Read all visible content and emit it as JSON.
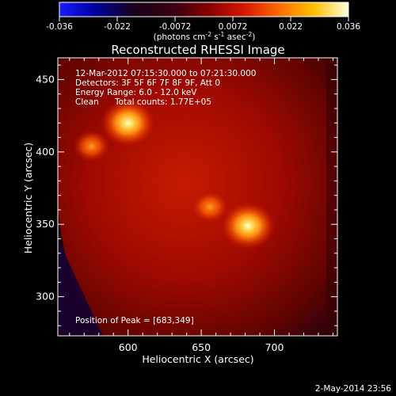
{
  "chart_data": {
    "type": "heatmap",
    "title": "Reconstructed RHESSI Image",
    "colorbar": {
      "ticks": [
        "-0.036",
        "-0.022",
        "-0.0072",
        "0.0072",
        "0.022",
        "0.036"
      ],
      "label_main": "(photons cm",
      "label_exp1": "-2",
      "label_mid": " s",
      "label_exp2": "-1",
      "label_end": " asec",
      "label_exp3": "-2",
      "label_close": ")",
      "colormap": "black-purple-red-orange-yellow-white",
      "range": [
        -0.036,
        0.036
      ]
    },
    "xlabel": "Heliocentric X (arcsec)",
    "ylabel": "Heliocentric Y (arcsec)",
    "xticks": [
      600,
      650,
      700
    ],
    "yticks": [
      300,
      350,
      400,
      450
    ],
    "xlim": [
      552,
      743
    ],
    "ylim": [
      273,
      465
    ],
    "annotations": {
      "line1": "12-Mar-2012 07:15:30.000 to 07:21:30.000",
      "line2": "Detectors: 3F 5F 6F 7F 8F 9F, Att 0",
      "line3": "Energy Range: 6.0 - 12.0 keV",
      "line4a": "Clean",
      "line4b": "Total counts: 1.77E+05",
      "peak": "Position of Peak = [683,349]"
    },
    "sources": [
      {
        "x": 600,
        "y": 420,
        "intensity": 0.95
      },
      {
        "x": 575,
        "y": 404,
        "intensity": 0.55
      },
      {
        "x": 682,
        "y": 349,
        "intensity": 1.0
      },
      {
        "x": 656,
        "y": 362,
        "intensity": 0.6
      }
    ],
    "peak": {
      "x": 683,
      "y": 349
    },
    "date_stamp": "2-May-2014 23:56"
  }
}
